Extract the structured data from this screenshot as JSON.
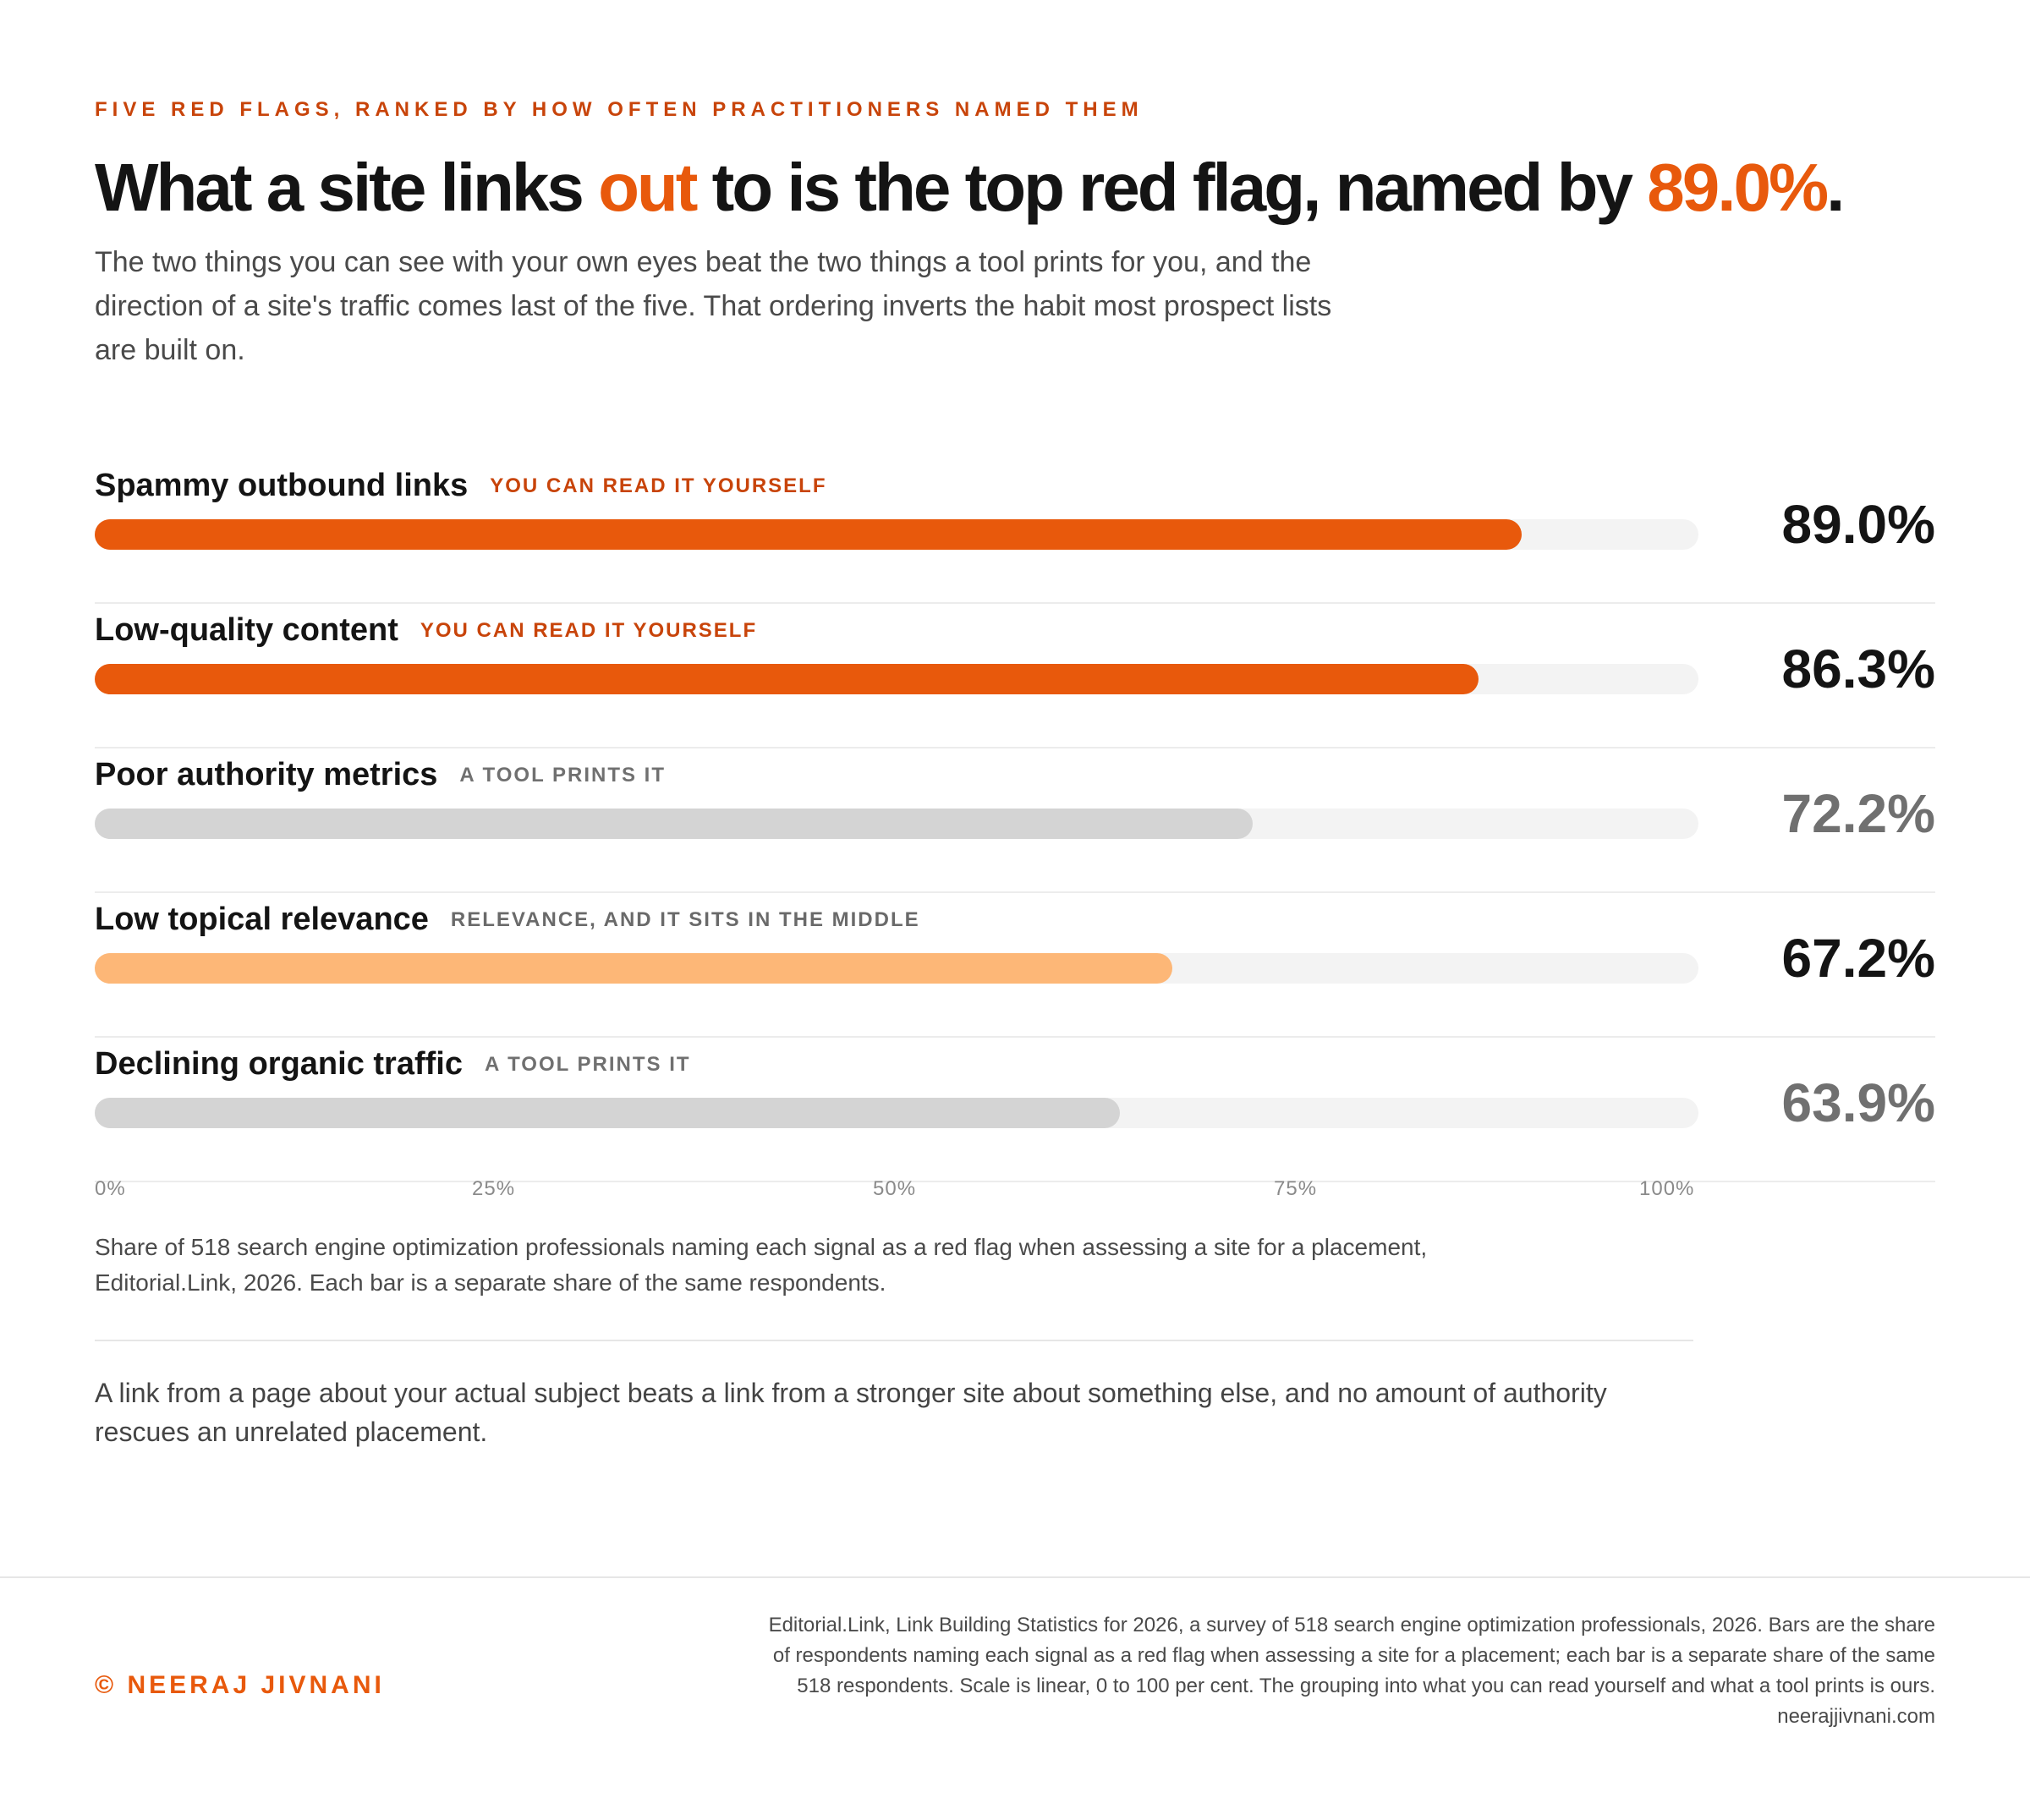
{
  "eyebrow": "FIVE RED FLAGS, RANKED BY HOW OFTEN PRACTITIONERS NAMED THEM",
  "headline": {
    "part1": "What a site links ",
    "accent1": "out",
    "part2": " to is the top red flag, named by ",
    "accent2": "89.0%",
    "part3": "."
  },
  "subtitle": "The two things you can see with your own eyes beat the two things a tool prints for you, and the direction of a site's traffic comes last of the five. That ordering inverts the habit most prospect lists are built on.",
  "colors": {
    "read_yourself": "#e8590c",
    "tool_prints": "#d4d4d4",
    "relevance": "#fdb777",
    "track": "#f3f3f3"
  },
  "chart_data": {
    "type": "bar",
    "orientation": "horizontal",
    "categories": [
      "Spammy outbound links",
      "Low-quality content",
      "Poor authority metrics",
      "Low topical relevance",
      "Declining organic traffic"
    ],
    "values": [
      89.0,
      86.3,
      72.2,
      67.2,
      63.9
    ],
    "value_labels": [
      "89.0%",
      "86.3%",
      "72.2%",
      "67.2%",
      "63.9%"
    ],
    "tags": [
      "YOU CAN READ IT YOURSELF",
      "YOU CAN READ IT YOURSELF",
      "A TOOL PRINTS IT",
      "RELEVANCE, AND IT SITS IN THE MIDDLE",
      "A TOOL PRINTS IT"
    ],
    "groups": [
      "self",
      "self",
      "tool",
      "mid",
      "tool"
    ],
    "xlim": [
      0,
      100
    ],
    "x_ticks": [
      "0%",
      "25%",
      "50%",
      "75%",
      "100%"
    ],
    "grid": false,
    "legend": "none"
  },
  "caption": "Share of 518 search engine optimization professionals naming each signal as a red flag when assessing a site for a placement, Editorial.Link, 2026. Each bar is a separate share of the same respondents.",
  "takeaway": "A link from a page about your actual subject beats a link from a stronger site about something else, and no amount of authority rescues an unrelated placement.",
  "footer": {
    "brand": "© NEERAJ JIVNANI",
    "source": "Editorial.Link, Link Building Statistics for 2026, a survey of 518 search engine optimization professionals, 2026. Bars are the share of respondents naming each signal as a red flag when assessing a site for a placement; each bar is a separate share of the same 518 respondents. Scale is linear, 0 to 100 per cent. The grouping into what you can read yourself and what a tool prints is ours.",
    "url": "neerajjivnani.com"
  }
}
